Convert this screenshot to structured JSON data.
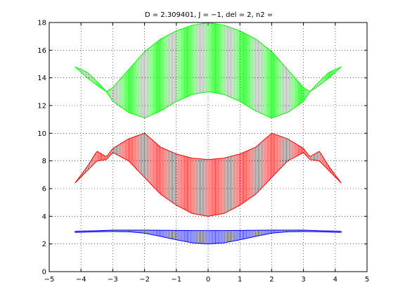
{
  "chart_data": {
    "type": "line",
    "title": "D = 2.309401, J = −1, del = 2, n2 =",
    "xlabel": "",
    "ylabel": "",
    "xlim": [
      -5,
      5
    ],
    "ylim": [
      0,
      18
    ],
    "x_ticks": [
      -5,
      -4,
      -3,
      -2,
      -1,
      0,
      1,
      2,
      3,
      4,
      5
    ],
    "y_ticks": [
      0,
      2,
      4,
      6,
      8,
      10,
      12,
      14,
      16,
      18
    ],
    "x_tick_labels": [
      "−5",
      "−4",
      "−3",
      "−2",
      "−1",
      "0",
      "1",
      "2",
      "3",
      "4",
      "5"
    ],
    "y_tick_labels": [
      "0",
      "2",
      "4",
      "6",
      "8",
      "10",
      "12",
      "14",
      "16",
      "18"
    ],
    "grid": true,
    "x_range": [
      -4.1888,
      4.1888
    ],
    "series": [
      {
        "color": "#0000ff",
        "description_points": {
          "x": [
            -4.19,
            -3.5,
            -3.0,
            -2.5,
            -2.0,
            -1.5,
            -1.0,
            -0.5,
            0.0,
            0.5,
            1.0,
            1.5,
            2.0,
            2.5,
            3.0,
            3.5,
            4.19
          ],
          "lower": [
            2.83,
            2.88,
            2.9,
            2.88,
            2.78,
            2.55,
            2.3,
            2.08,
            2.0,
            2.08,
            2.3,
            2.55,
            2.78,
            2.88,
            2.9,
            2.88,
            2.83
          ],
          "upper": [
            2.92,
            2.96,
            3.0,
            3.0,
            3.0,
            2.99,
            2.98,
            2.97,
            2.97,
            2.97,
            2.98,
            2.99,
            3.0,
            3.0,
            3.0,
            2.96,
            2.92
          ]
        }
      },
      {
        "color": "#ff0000",
        "description_points": {
          "x": [
            -4.19,
            -3.8,
            -3.5,
            -3.2,
            -3.0,
            -2.5,
            -2.0,
            -1.5,
            -1.0,
            -0.5,
            0.0,
            0.5,
            1.0,
            1.5,
            2.0,
            2.5,
            3.0,
            3.2,
            3.5,
            3.8,
            4.19
          ],
          "lower": [
            6.4,
            7.3,
            8.0,
            8.1,
            8.6,
            8.0,
            6.8,
            5.6,
            4.8,
            4.2,
            4.0,
            4.2,
            4.8,
            5.6,
            6.8,
            8.0,
            8.6,
            8.1,
            8.0,
            7.3,
            6.4
          ],
          "upper": [
            6.4,
            7.6,
            8.7,
            8.3,
            8.9,
            9.6,
            10.0,
            9.0,
            8.5,
            8.2,
            8.1,
            8.2,
            8.5,
            9.0,
            10.0,
            9.6,
            8.9,
            8.3,
            8.7,
            7.6,
            6.4
          ]
        }
      },
      {
        "color": "#00ff00",
        "description_points": {
          "x": [
            -4.19,
            -3.8,
            -3.4,
            -3.2,
            -3.0,
            -2.5,
            -2.0,
            -1.5,
            -1.0,
            -0.5,
            0.0,
            0.5,
            1.0,
            1.5,
            2.0,
            2.5,
            3.0,
            3.2,
            3.4,
            3.8,
            4.19
          ],
          "lower": [
            14.8,
            14.0,
            13.3,
            13.0,
            12.3,
            11.5,
            11.1,
            11.6,
            12.3,
            12.8,
            13.0,
            12.8,
            12.3,
            11.6,
            11.1,
            11.5,
            12.3,
            13.0,
            13.3,
            14.0,
            14.8
          ],
          "upper": [
            14.8,
            14.4,
            13.5,
            13.0,
            13.3,
            14.6,
            15.9,
            16.8,
            17.4,
            17.8,
            18.0,
            17.8,
            17.4,
            16.8,
            15.9,
            14.6,
            13.3,
            13.0,
            13.5,
            14.4,
            14.8
          ]
        }
      }
    ]
  }
}
